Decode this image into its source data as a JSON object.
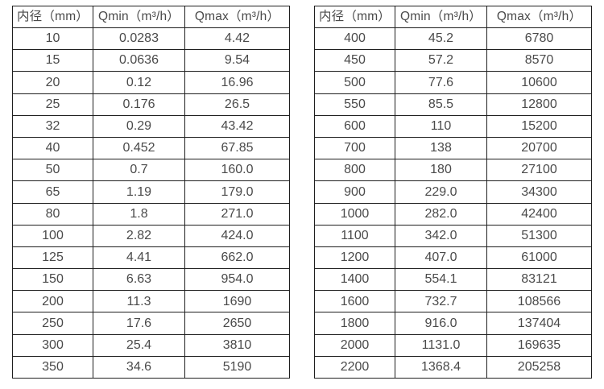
{
  "page": {
    "background_color": "#ffffff",
    "text_color": "#4a4a4a",
    "border_color": "#1f1f1f"
  },
  "tables": [
    {
      "name": "small-diameters",
      "headers": [
        "内径（mm）",
        "Qmin（m³/h）",
        "Qmax（m³/h）"
      ],
      "rows": [
        [
          "10",
          "0.0283",
          "4.42"
        ],
        [
          "15",
          "0.0636",
          "9.54"
        ],
        [
          "20",
          "0.12",
          "16.96"
        ],
        [
          "25",
          "0.176",
          "26.5"
        ],
        [
          "32",
          "0.29",
          "43.42"
        ],
        [
          "40",
          "0.452",
          "67.85"
        ],
        [
          "50",
          "0.7",
          "160.0"
        ],
        [
          "65",
          "1.19",
          "179.0"
        ],
        [
          "80",
          "1.8",
          "271.0"
        ],
        [
          "100",
          "2.82",
          "424.0"
        ],
        [
          "125",
          "4.41",
          "662.0"
        ],
        [
          "150",
          "6.63",
          "954.0"
        ],
        [
          "200",
          "11.3",
          "1690"
        ],
        [
          "250",
          "17.6",
          "2650"
        ],
        [
          "300",
          "25.4",
          "3810"
        ],
        [
          "350",
          "34.6",
          "5190"
        ]
      ]
    },
    {
      "name": "large-diameters",
      "headers": [
        "内径（mm）",
        "Qmin（m³/h）",
        "Qmax（m³/h）"
      ],
      "rows": [
        [
          "400",
          "45.2",
          "6780"
        ],
        [
          "450",
          "57.2",
          "8570"
        ],
        [
          "500",
          "77.6",
          "10600"
        ],
        [
          "550",
          "85.5",
          "12800"
        ],
        [
          "600",
          "110",
          "15200"
        ],
        [
          "700",
          "138",
          "20700"
        ],
        [
          "800",
          "180",
          "27100"
        ],
        [
          "900",
          "229.0",
          "34300"
        ],
        [
          "1000",
          "282.0",
          "42400"
        ],
        [
          "1100",
          "342.0",
          "51300"
        ],
        [
          "1200",
          "407.0",
          "61000"
        ],
        [
          "1400",
          "554.1",
          "83121"
        ],
        [
          "1600",
          "732.7",
          "108566"
        ],
        [
          "1800",
          "916.0",
          "137404"
        ],
        [
          "2000",
          "1131.0",
          "169635"
        ],
        [
          "2200",
          "1368.4",
          "205258"
        ]
      ]
    }
  ]
}
